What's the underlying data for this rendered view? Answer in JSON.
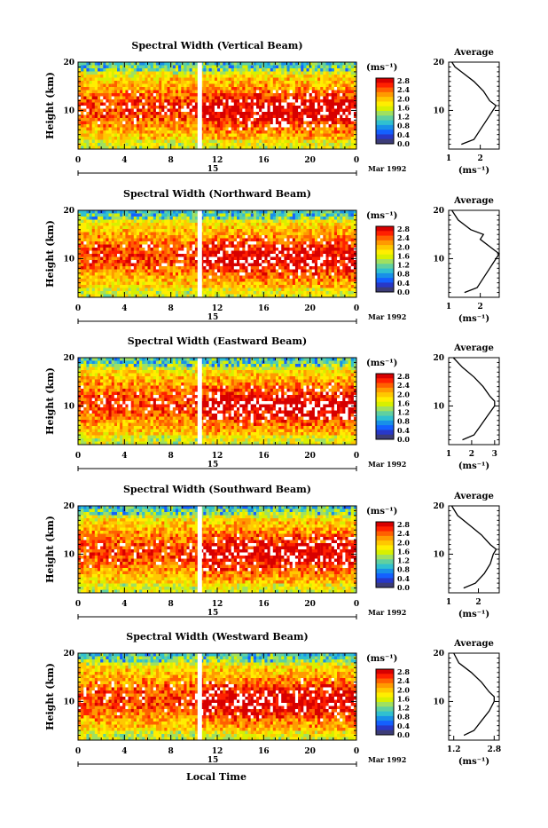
{
  "figure": {
    "x_axis_title": "Local Time",
    "date_label": "Mar 1992",
    "day_label": "15",
    "x_ticks": [
      "0",
      "4",
      "8",
      "12",
      "16",
      "20",
      "0"
    ],
    "y_label": "Height (km)",
    "y_ticks": [
      "20",
      "10"
    ],
    "colorbar_unit": "(ms⁻¹)",
    "colorbar_ticks": [
      "2.8",
      "2.4",
      "2.0",
      "1.6",
      "1.2",
      "0.8",
      "0.4",
      "0.0"
    ],
    "colorbar_colors": [
      "#d70000",
      "#ff2000",
      "#ff6000",
      "#ff9a00",
      "#ffc800",
      "#ffee00",
      "#d8f000",
      "#a0e060",
      "#60d0a0",
      "#30c0d0",
      "#1890e8",
      "#1460ff",
      "#2838c8",
      "#3c3c78"
    ],
    "avg_title": "Average",
    "avg_unit": "(ms⁻¹)",
    "avg_y_ticks": [
      "20",
      "10"
    ]
  },
  "chart_data": [
    {
      "type": "heatmap",
      "title": "Spectral Width (Vertical Beam)",
      "xlabel": "Local Time",
      "ylabel": "Height (km)",
      "xlim": [
        0,
        24
      ],
      "ylim": [
        2,
        20
      ],
      "colorbar_range": [
        0.0,
        2.8
      ],
      "average_profile": {
        "x_ticks": [
          "1",
          "2"
        ],
        "xlim": [
          1,
          2.6
        ],
        "heights": [
          3,
          4,
          6,
          8,
          10,
          11,
          12,
          14,
          16,
          18,
          19,
          20
        ],
        "values": [
          1.4,
          1.8,
          2.0,
          2.2,
          2.4,
          2.5,
          2.3,
          2.1,
          1.8,
          1.4,
          1.2,
          1.1
        ]
      }
    },
    {
      "type": "heatmap",
      "title": "Spectral Width (Northward Beam)",
      "xlabel": "Local Time",
      "ylabel": "Height (km)",
      "xlim": [
        0,
        24
      ],
      "ylim": [
        2,
        20
      ],
      "colorbar_range": [
        0.0,
        2.8
      ],
      "average_profile": {
        "x_ticks": [
          "1",
          "2"
        ],
        "xlim": [
          1,
          2.6
        ],
        "heights": [
          3,
          4,
          6,
          8,
          10,
          11,
          12,
          14,
          15,
          16,
          18,
          20
        ],
        "values": [
          1.5,
          1.9,
          2.1,
          2.3,
          2.5,
          2.6,
          2.4,
          2.0,
          2.1,
          1.7,
          1.3,
          1.1
        ]
      }
    },
    {
      "type": "heatmap",
      "title": "Spectral Width (Eastward Beam)",
      "xlabel": "Local Time",
      "ylabel": "Height (km)",
      "xlim": [
        0,
        24
      ],
      "ylim": [
        2,
        20
      ],
      "colorbar_range": [
        0.0,
        2.8
      ],
      "average_profile": {
        "x_ticks": [
          "1",
          "2",
          "3"
        ],
        "xlim": [
          1,
          3.2
        ],
        "heights": [
          3,
          4,
          6,
          8,
          10,
          11,
          12,
          14,
          16,
          18,
          20
        ],
        "values": [
          1.6,
          2.1,
          2.4,
          2.7,
          3.0,
          3.0,
          2.8,
          2.5,
          2.1,
          1.6,
          1.2
        ]
      }
    },
    {
      "type": "heatmap",
      "title": "Spectral Width (Southward Beam)",
      "xlabel": "Local Time",
      "ylabel": "Height (km)",
      "xlim": [
        0,
        24
      ],
      "ylim": [
        2,
        20
      ],
      "colorbar_range": [
        0.0,
        2.8
      ],
      "average_profile": {
        "x_ticks": [
          "1",
          "2"
        ],
        "xlim": [
          1,
          2.7
        ],
        "heights": [
          3,
          4,
          6,
          8,
          10,
          11,
          12,
          14,
          16,
          18,
          20
        ],
        "values": [
          1.5,
          1.9,
          2.2,
          2.4,
          2.5,
          2.6,
          2.4,
          2.1,
          1.7,
          1.3,
          1.1
        ]
      }
    },
    {
      "type": "heatmap",
      "title": "Spectral Width (Westward Beam)",
      "xlabel": "Local Time",
      "ylabel": "Height (km)",
      "xlim": [
        0,
        24
      ],
      "ylim": [
        2,
        20
      ],
      "colorbar_range": [
        0.0,
        2.8
      ],
      "average_profile": {
        "x_ticks": [
          "1.2",
          "2.8"
        ],
        "xlim": [
          1.0,
          3.0
        ],
        "heights": [
          3,
          4,
          6,
          8,
          10,
          11,
          12,
          14,
          16,
          18,
          20
        ],
        "values": [
          1.6,
          2.0,
          2.3,
          2.6,
          2.8,
          2.8,
          2.6,
          2.3,
          1.9,
          1.4,
          1.2
        ]
      }
    }
  ]
}
